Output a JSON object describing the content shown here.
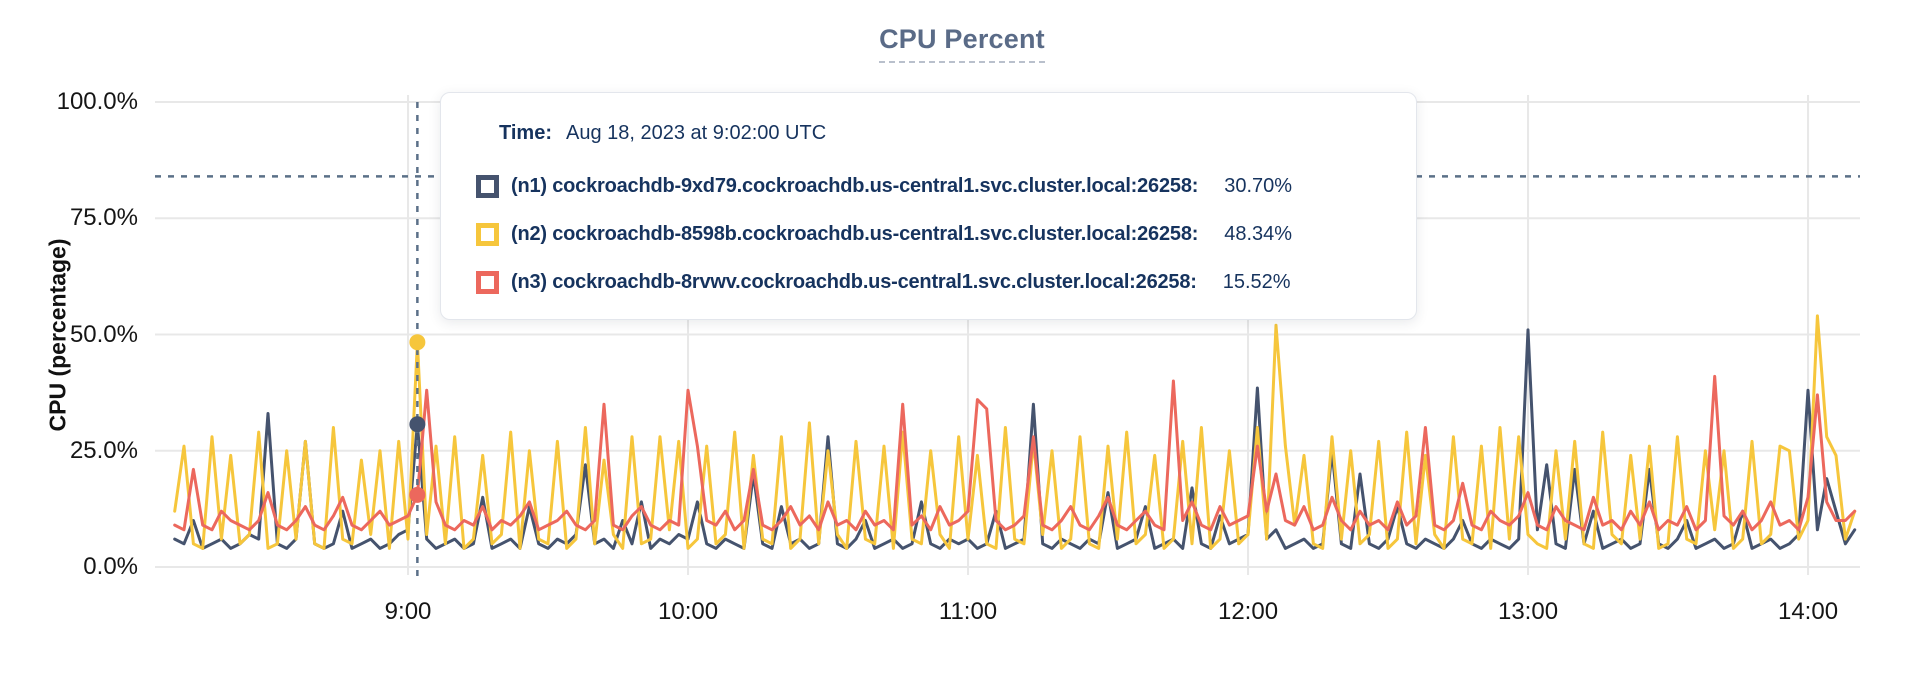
{
  "page": {
    "title": "CPU Percent"
  },
  "y_axis": {
    "label": "CPU (percentage)"
  },
  "tooltip": {
    "time_label": "Time:",
    "time_value": "Aug 18, 2023 at 9:02:00 UTC",
    "rows": [
      {
        "label": "(n1) cockroachdb-9xd79.cockroachdb.us-central1.svc.cluster.local:26258:",
        "value": "30.70%"
      },
      {
        "label": "(n2) cockroachdb-8598b.cockroachdb.us-central1.svc.cluster.local:26258:",
        "value": "48.34%"
      },
      {
        "label": "(n3) cockroachdb-8rvwv.cockroachdb.us-central1.svc.cluster.local:26258:",
        "value": "15.52%"
      }
    ]
  },
  "colors": {
    "title_text": "#5a6b87",
    "tooltip_text": "#16335e",
    "grid": "#e8e8e8",
    "crosshair": "#5b7088"
  },
  "chart_data": {
    "type": "line",
    "title": "CPU Percent",
    "ylabel": "CPU (percentage)",
    "ylim": [
      0,
      100
    ],
    "grid": true,
    "legend_position": "tooltip",
    "ytick_labels": [
      "0.0%",
      "25.0%",
      "50.0%",
      "75.0%",
      "100.0%"
    ],
    "ytick_values": [
      0,
      25,
      50,
      75,
      100
    ],
    "xtick_labels": [
      "9:00",
      "10:00",
      "11:00",
      "12:00",
      "13:00",
      "14:00"
    ],
    "xtick_indices": [
      25,
      55,
      85,
      115,
      145,
      175
    ],
    "x_start_time": "8:10",
    "x_end_time": "14:10",
    "x_step_minutes": 2,
    "hover": {
      "index": 26,
      "time": "9:02",
      "crosshair_percent": 84,
      "values": [
        30.7,
        48.34,
        15.52
      ]
    },
    "series": [
      {
        "name": "(n1) cockroachdb-9xd79.cockroachdb.us-central1.svc.cluster.local:26258",
        "color": "#45536e",
        "values": [
          6,
          5,
          10,
          4,
          5,
          6,
          4,
          5,
          7,
          6,
          33,
          5,
          4,
          6,
          27,
          5,
          4,
          5,
          12,
          4,
          5,
          6,
          4,
          5,
          7,
          8,
          30.7,
          6,
          4,
          5,
          6,
          4,
          5,
          15,
          4,
          5,
          6,
          4,
          13,
          5,
          4,
          6,
          5,
          7,
          22,
          5,
          6,
          4,
          10,
          5,
          14,
          4,
          6,
          5,
          7,
          6,
          14,
          5,
          4,
          6,
          5,
          4,
          20,
          5,
          4,
          13,
          5,
          6,
          4,
          5,
          28,
          5,
          4,
          6,
          10,
          4,
          5,
          6,
          4,
          5,
          14,
          5,
          4,
          6,
          5,
          6,
          4,
          5,
          12,
          4,
          5,
          6,
          35,
          5,
          4,
          6,
          5,
          4,
          6,
          5,
          16,
          4,
          5,
          6,
          13,
          4,
          5,
          6,
          4,
          17,
          5,
          4,
          11,
          5,
          6,
          7,
          38.5,
          6,
          8,
          4,
          5,
          6,
          4,
          5,
          25,
          5,
          4,
          20,
          5,
          4,
          6,
          13,
          5,
          4,
          6,
          5,
          4,
          6,
          10,
          5,
          4,
          6,
          5,
          4,
          6,
          51,
          8,
          22,
          5,
          4,
          21,
          5,
          12,
          4,
          5,
          6,
          4,
          5,
          21,
          5,
          4,
          6,
          10,
          4,
          5,
          6,
          4,
          5,
          12,
          4,
          5,
          6,
          4,
          5,
          7,
          38,
          8,
          19,
          12,
          5,
          8
        ]
      },
      {
        "name": "(n2) cockroachdb-8598b.cockroachdb.us-central1.svc.cluster.local:26258",
        "color": "#f6c63c",
        "values": [
          12,
          26,
          5,
          4,
          28,
          6,
          24,
          5,
          7,
          29,
          4,
          5,
          25,
          6,
          27,
          5,
          4,
          30,
          6,
          5,
          23,
          7,
          25,
          4,
          27,
          6,
          48.34,
          7,
          26,
          5,
          28,
          4,
          6,
          24,
          5,
          7,
          29,
          4,
          25,
          6,
          5,
          27,
          4,
          6,
          30,
          5,
          23,
          7,
          4,
          28,
          5,
          6,
          28,
          8,
          27,
          4,
          6,
          26,
          5,
          7,
          29,
          4,
          24,
          6,
          5,
          28,
          4,
          6,
          31,
          5,
          25,
          7,
          4,
          27,
          6,
          5,
          26,
          4,
          29,
          6,
          5,
          25,
          7,
          4,
          28,
          6,
          24,
          5,
          4,
          30,
          6,
          5,
          27,
          7,
          25,
          4,
          6,
          28,
          5,
          4,
          26,
          6,
          29,
          5,
          7,
          24,
          4,
          6,
          27,
          5,
          30,
          4,
          6,
          25,
          5,
          7,
          30,
          6,
          52,
          26,
          9,
          24,
          5,
          4,
          28,
          6,
          25,
          5,
          7,
          27,
          4,
          6,
          29,
          5,
          24,
          7,
          4,
          28,
          6,
          5,
          26,
          4,
          30,
          6,
          28,
          7,
          5,
          4,
          25,
          6,
          27,
          5,
          4,
          29,
          7,
          5,
          24,
          6,
          26,
          4,
          5,
          28,
          6,
          5,
          25,
          8,
          25,
          4,
          6,
          27,
          5,
          7,
          26,
          25,
          6,
          10,
          54,
          28,
          24,
          6,
          12
        ]
      },
      {
        "name": "(n3) cockroachdb-8rvwv.cockroachdb.us-central1.svc.cluster.local:26258",
        "color": "#ec685d",
        "values": [
          9,
          8,
          21,
          9,
          8,
          12,
          10,
          9,
          8,
          10,
          16,
          9,
          8,
          10,
          13,
          9,
          8,
          11,
          15,
          9,
          8,
          10,
          12,
          9,
          10,
          11,
          15.52,
          38,
          14,
          9,
          8,
          10,
          9,
          13,
          8,
          10,
          9,
          11,
          14,
          8,
          9,
          10,
          12,
          9,
          8,
          10,
          35,
          9,
          8,
          11,
          13,
          9,
          8,
          10,
          9,
          38,
          26,
          10,
          9,
          12,
          8,
          10,
          21,
          9,
          8,
          10,
          13,
          9,
          11,
          8,
          14,
          9,
          10,
          8,
          12,
          9,
          10,
          8,
          35,
          9,
          11,
          8,
          13,
          9,
          10,
          12,
          36,
          34,
          10,
          8,
          9,
          11,
          28,
          9,
          8,
          10,
          13,
          9,
          8,
          11,
          15,
          9,
          8,
          10,
          12,
          9,
          8,
          40,
          10,
          14,
          9,
          8,
          13,
          9,
          10,
          11,
          26,
          12,
          20,
          10,
          9,
          13,
          8,
          9,
          15,
          10,
          8,
          12,
          9,
          10,
          8,
          14,
          9,
          11,
          30,
          9,
          8,
          10,
          18,
          9,
          8,
          12,
          10,
          9,
          11,
          16,
          9,
          8,
          13,
          10,
          9,
          8,
          15,
          9,
          10,
          8,
          12,
          9,
          14,
          8,
          10,
          9,
          13,
          8,
          10,
          41,
          11,
          9,
          12,
          8,
          10,
          14,
          9,
          10,
          8,
          15,
          37,
          14,
          10,
          10,
          12
        ]
      }
    ]
  }
}
